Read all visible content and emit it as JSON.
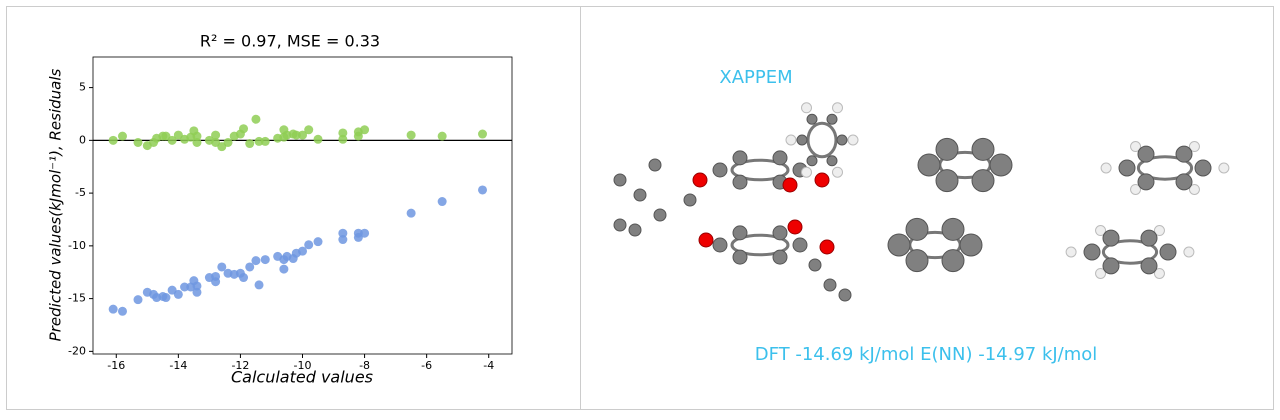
{
  "chart_data": {
    "type": "scatter",
    "title": "R² = 0.97, MSE = 0.33",
    "x_label": "Calculated values",
    "y_label": "Predicted values(kJmol⁻¹), Residuals",
    "x": [
      -16.1,
      -15.8,
      -15.3,
      -15.0,
      -14.8,
      -14.7,
      -14.5,
      -14.4,
      -14.2,
      -14.0,
      -13.8,
      -13.6,
      -13.5,
      -13.4,
      -13.4,
      -13.0,
      -12.8,
      -12.8,
      -12.6,
      -12.4,
      -12.2,
      -12.0,
      -11.9,
      -11.7,
      -11.5,
      -11.4,
      -11.2,
      -10.8,
      -10.6,
      -10.6,
      -10.5,
      -10.3,
      -10.2,
      -10.0,
      -9.8,
      -9.5,
      -8.7,
      -8.7,
      -8.2,
      -8.2,
      -8.0,
      -6.5,
      -5.5,
      -4.2
    ],
    "series": [
      {
        "color": "#6f97e0",
        "values": [
          -16.0,
          -16.2,
          -15.1,
          -14.4,
          -14.6,
          -14.9,
          -14.8,
          -14.9,
          -14.2,
          -14.6,
          -13.9,
          -13.9,
          -13.3,
          -14.4,
          -13.8,
          -13.0,
          -12.9,
          -13.4,
          -12.0,
          -12.6,
          -12.7,
          -12.6,
          -13.0,
          -12.0,
          -11.4,
          -13.7,
          -11.3,
          -11.0,
          -12.2,
          -11.3,
          -11.0,
          -11.2,
          -10.7,
          -10.5,
          -9.9,
          -9.6,
          -8.8,
          -9.4,
          -9.2,
          -8.8,
          -8.8,
          -6.9,
          -5.8,
          -4.7
        ]
      },
      {
        "color": "#8fce55",
        "values": [
          0.0,
          0.4,
          -0.2,
          -0.5,
          -0.2,
          0.2,
          0.4,
          0.4,
          0.0,
          0.5,
          0.1,
          0.3,
          0.9,
          -0.2,
          0.4,
          0.0,
          0.5,
          -0.2,
          -0.6,
          -0.2,
          0.4,
          0.6,
          1.1,
          -0.3,
          2.0,
          -0.1,
          -0.1,
          0.2,
          1.0,
          0.3,
          0.5,
          0.6,
          0.5,
          0.5,
          1.0,
          0.1,
          0.1,
          0.7,
          0.4,
          0.8,
          1.0,
          0.5,
          0.4,
          0.6
        ]
      }
    ],
    "hline": 0,
    "xlim": [
      -16.75,
      -3.25
    ],
    "xticks": [
      -16,
      -14,
      -12,
      -10,
      -8,
      -6,
      -4
    ],
    "ylim": [
      -20.25,
      7.9
    ],
    "yticks": [
      5,
      0,
      -5,
      -10,
      -15,
      -20
    ]
  },
  "molecule_panel": {
    "name": "XAPPEM",
    "caption": "DFT -14.69 kJ/mol E(NN) -14.97 kJ/mol"
  }
}
